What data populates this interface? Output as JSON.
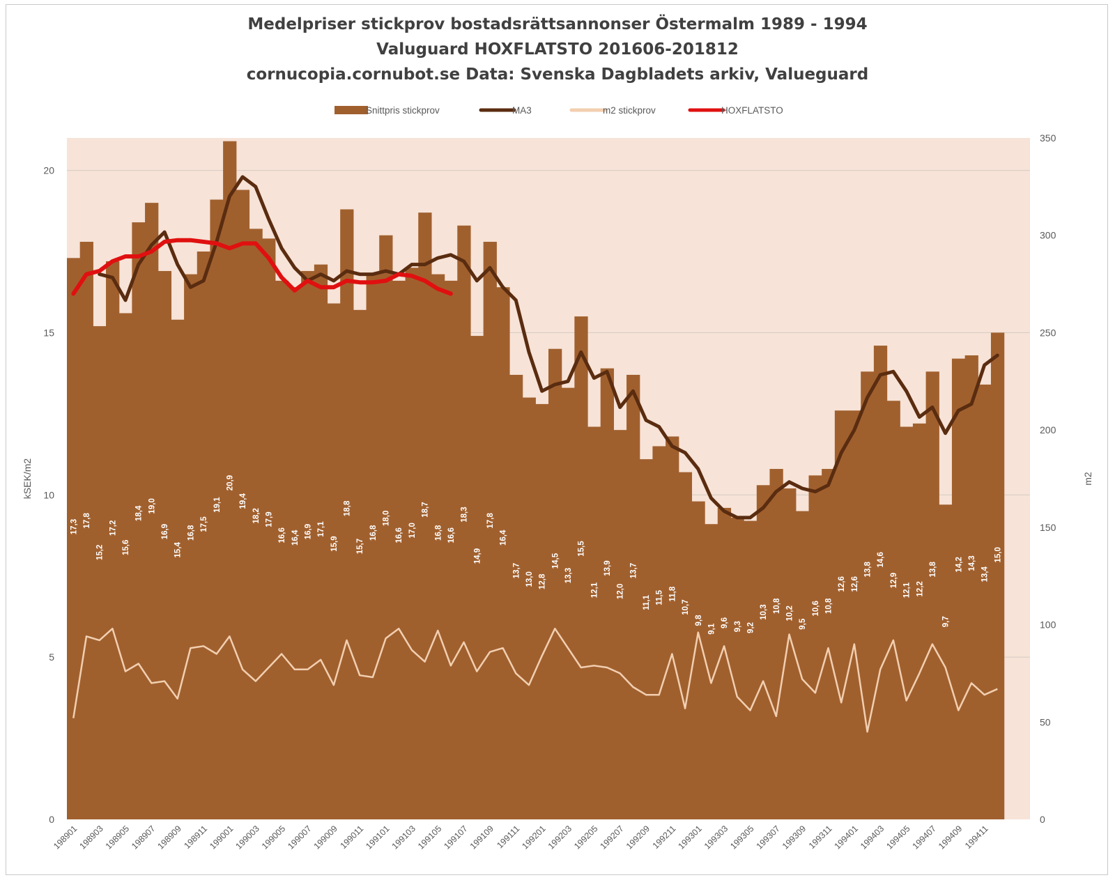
{
  "chart_data": {
    "type": "bar",
    "title_lines": [
      "Medelpriser stickprov bostadsrättsannonser Östermalm 1989 - 1994",
      "Valuguard HOXFLATSTO 201606-201812",
      "cornucopia.cornubot.se Data: Svenska Dagbladets arkiv, Valueguard"
    ],
    "ylabel": "kSEK/m2",
    "y2label": "m2",
    "ylim": [
      0,
      21
    ],
    "y2lim": [
      0,
      350
    ],
    "yticks": [
      "0",
      "5",
      "10",
      "15",
      "20"
    ],
    "y2ticks": [
      "0",
      "50",
      "100",
      "150",
      "200",
      "250",
      "300",
      "350"
    ],
    "grid": true,
    "legend_position": "top",
    "colors": {
      "bars": "#a0602e",
      "ma3": "#5a2c10",
      "m2": "#f2cfb0",
      "hox": "#e01010",
      "plot_bg": "#f7e3d7",
      "bar_label": "#ffffff"
    },
    "categories": [
      "198901",
      "198902",
      "198903",
      "198904",
      "198905",
      "198906",
      "198907",
      "198908",
      "198909",
      "198910",
      "198911",
      "198912",
      "199001",
      "199002",
      "199003",
      "199004",
      "199005",
      "199006",
      "199007",
      "199008",
      "199009",
      "199010",
      "199011",
      "199012",
      "199101",
      "199102",
      "199103",
      "199104",
      "199105",
      "199106",
      "199107",
      "199108",
      "199109",
      "199110",
      "199111",
      "199112",
      "199201",
      "199202",
      "199203",
      "199204",
      "199205",
      "199206",
      "199207",
      "199208",
      "199209",
      "199210",
      "199211",
      "199212",
      "199301",
      "199302",
      "199303",
      "199304",
      "199305",
      "199306",
      "199307",
      "199308",
      "199309",
      "199310",
      "199311",
      "199312",
      "199401",
      "199402",
      "199403",
      "199404",
      "199405",
      "199406",
      "199407",
      "199408",
      "199409",
      "199410",
      "199411",
      "199412"
    ],
    "tick_labels": [
      "198901",
      "198903",
      "198905",
      "198907",
      "198909",
      "198911",
      "199001",
      "199003",
      "199005",
      "199007",
      "199009",
      "199011",
      "199101",
      "199103",
      "199105",
      "199107",
      "199109",
      "199111",
      "199201",
      "199203",
      "199205",
      "199207",
      "199209",
      "199211",
      "199301",
      "199303",
      "199305",
      "199307",
      "199309",
      "199311",
      "199401",
      "199403",
      "199405",
      "199407",
      "199409",
      "199411"
    ],
    "series": [
      {
        "name": "Snittpris stickprov",
        "type": "bar",
        "axis": "left",
        "values": [
          17.3,
          17.8,
          15.2,
          17.2,
          15.6,
          18.4,
          19.0,
          16.9,
          15.4,
          16.8,
          17.5,
          19.1,
          20.9,
          19.4,
          18.2,
          17.9,
          16.6,
          16.4,
          16.9,
          17.1,
          15.9,
          18.8,
          15.7,
          16.8,
          18.0,
          16.6,
          17.0,
          18.7,
          16.8,
          16.6,
          18.3,
          14.9,
          17.8,
          16.4,
          13.7,
          13.0,
          12.8,
          14.5,
          13.3,
          15.5,
          12.1,
          13.9,
          12.0,
          13.7,
          11.1,
          11.5,
          11.8,
          10.7,
          9.8,
          9.1,
          9.6,
          9.3,
          9.2,
          10.3,
          10.8,
          10.2,
          9.5,
          10.6,
          10.8,
          12.6,
          12.6,
          13.8,
          14.6,
          12.9,
          12.1,
          12.2,
          13.8,
          9.7,
          14.2,
          14.3,
          13.4,
          15.0
        ],
        "labels": [
          "17,3",
          "17,8",
          "15,2",
          "17,2",
          "15,6",
          "18,4",
          "19,0",
          "16,9",
          "15,4",
          "16,8",
          "17,5",
          "19,1",
          "20,9",
          "19,4",
          "18,2",
          "17,9",
          "16,6",
          "16,4",
          "16,9",
          "17,1",
          "15,9",
          "18,8",
          "15,7",
          "16,8",
          "18,0",
          "16,6",
          "17,0",
          "18,7",
          "16,8",
          "16,6",
          "18,3",
          "14,9",
          "17,8",
          "16,4",
          "13,7",
          "13,0",
          "12,8",
          "14,5",
          "13,3",
          "15,5",
          "12,1",
          "13,9",
          "12,0",
          "13,7",
          "11,1",
          "11,5",
          "11,8",
          "10,7",
          "9,8",
          "9,1",
          "9,6",
          "9,3",
          "9,2",
          "10,3",
          "10,8",
          "10,2",
          "9,5",
          "10,6",
          "10,8",
          "12,6",
          "12,6",
          "13,8",
          "14,6",
          "12,9",
          "12,1",
          "12,2",
          "13,8",
          "9,7",
          "14,2",
          "14,3",
          "13,4",
          "15,0"
        ]
      },
      {
        "name": "MA3",
        "type": "line",
        "axis": "left",
        "values": [
          null,
          null,
          16.8,
          16.7,
          16.0,
          17.1,
          17.7,
          18.1,
          17.1,
          16.4,
          16.6,
          17.8,
          19.2,
          19.8,
          19.5,
          18.5,
          17.6,
          17.0,
          16.6,
          16.8,
          16.6,
          16.9,
          16.8,
          16.8,
          16.9,
          16.8,
          17.1,
          17.1,
          17.3,
          17.4,
          17.2,
          16.6,
          17.0,
          16.4,
          16.0,
          14.4,
          13.2,
          13.4,
          13.5,
          14.4,
          13.6,
          13.8,
          12.7,
          13.2,
          12.3,
          12.1,
          11.5,
          11.3,
          10.8,
          9.9,
          9.5,
          9.3,
          9.3,
          9.6,
          10.1,
          10.4,
          10.2,
          10.1,
          10.3,
          11.3,
          12.0,
          13.0,
          13.7,
          13.8,
          13.2,
          12.4,
          12.7,
          11.9,
          12.6,
          12.8,
          14.0,
          14.3
        ]
      },
      {
        "name": "m2 stickprov",
        "type": "line",
        "axis": "right",
        "values": [
          52,
          94,
          92,
          98,
          76,
          80,
          70,
          71,
          62,
          88,
          89,
          85,
          94,
          77,
          71,
          78,
          85,
          77,
          77,
          82,
          69,
          92,
          74,
          73,
          93,
          98,
          87,
          81,
          97,
          79,
          91,
          76,
          86,
          88,
          75,
          69,
          84,
          98,
          88,
          78,
          79,
          78,
          75,
          68,
          64,
          64,
          85,
          57,
          96,
          70,
          89,
          63,
          56,
          71,
          53,
          95,
          72,
          65,
          88,
          60,
          90,
          45,
          77,
          92,
          61,
          75,
          90,
          78,
          56,
          70,
          64,
          67
        ]
      },
      {
        "name": "HOXFLATSTO",
        "type": "line",
        "axis": "left",
        "values": [
          16.2,
          16.8,
          16.9,
          17.2,
          17.35,
          17.35,
          17.5,
          17.8,
          17.85,
          17.85,
          17.8,
          17.75,
          17.6,
          17.75,
          17.75,
          17.3,
          16.7,
          16.3,
          16.6,
          16.4,
          16.4,
          16.6,
          16.55,
          16.55,
          16.6,
          16.8,
          16.75,
          16.6,
          16.35,
          16.2,
          null,
          null,
          null,
          null,
          null,
          null,
          null,
          null,
          null,
          null,
          null,
          null,
          null,
          null,
          null,
          null,
          null,
          null,
          null,
          null,
          null,
          null,
          null,
          null,
          null,
          null,
          null,
          null,
          null,
          null,
          null,
          null,
          null,
          null,
          null,
          null,
          null,
          null,
          null,
          null,
          null,
          null
        ]
      }
    ]
  }
}
